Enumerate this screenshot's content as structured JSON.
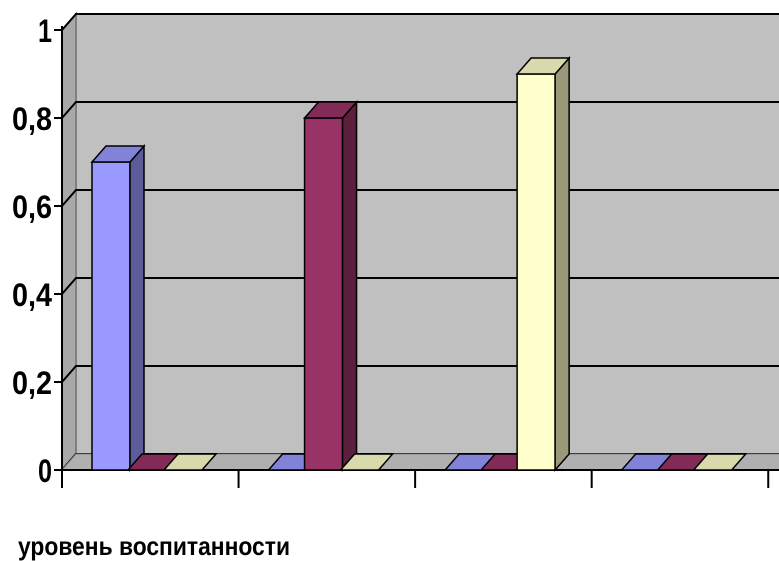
{
  "chart_data": {
    "type": "bar",
    "style": "3d-clustered-column",
    "xlabel": "уровень воспитанности",
    "ylabel": "",
    "ylim": [
      0,
      1
    ],
    "yticks": [
      0,
      0.2,
      0.4,
      0.6,
      0.8,
      1
    ],
    "ytick_labels": [
      "0",
      "0,2",
      "0,4",
      "0,6",
      "0,8",
      "1"
    ],
    "categories": [
      "",
      "",
      "",
      ""
    ],
    "series": [
      {
        "values": [
          0.7,
          0,
          0,
          0
        ],
        "color": "#9999FF"
      },
      {
        "values": [
          0,
          0.8,
          0,
          0
        ],
        "color": "#993366"
      },
      {
        "values": [
          0,
          0,
          0.9,
          0
        ],
        "color": "#FFFFCC"
      }
    ],
    "grid": true,
    "legend": "none",
    "wall_color": "#C0C0C0"
  }
}
